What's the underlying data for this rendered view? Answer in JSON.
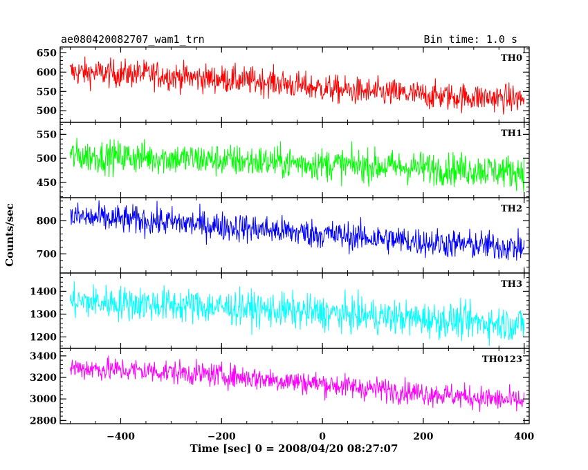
{
  "chart_data": {
    "type": "line",
    "title": "ae080420082707_wam1_trn",
    "subtitle": "Bin time: 1.0 s",
    "xlabel": "Time [sec] 0 = 2008/04/20 08:27:07",
    "ylabel": "Counts/sec",
    "xlim": [
      -520,
      410
    ],
    "x_start": -500,
    "x_end": 400,
    "x_ticks": [
      -400,
      -200,
      0,
      200,
      400
    ],
    "grid": false,
    "legend": "none",
    "series": [
      {
        "name": "TH0",
        "color": "#ff0000",
        "ylim": [
          470,
          665
        ],
        "y_ticks": [
          500,
          550,
          600,
          650
        ],
        "x": [
          -500,
          -450,
          -400,
          -350,
          -300,
          -250,
          -200,
          -150,
          -100,
          -50,
          0,
          50,
          100,
          150,
          200,
          250,
          300,
          350,
          400
        ],
        "values": [
          600,
          598,
          596,
          595,
          590,
          585,
          582,
          578,
          575,
          565,
          558,
          552,
          548,
          545,
          540,
          537,
          535,
          533,
          530
        ],
        "noise": 18
      },
      {
        "name": "TH1",
        "color": "#00ff00",
        "ylim": [
          418,
          575
        ],
        "y_ticks": [
          450,
          500,
          550
        ],
        "x": [
          -500,
          -450,
          -400,
          -350,
          -300,
          -250,
          -200,
          -150,
          -100,
          -50,
          0,
          50,
          100,
          150,
          200,
          250,
          300,
          350,
          400
        ],
        "values": [
          505,
          504,
          503,
          502,
          500,
          498,
          496,
          494,
          492,
          490,
          488,
          486,
          484,
          482,
          480,
          478,
          476,
          474,
          472
        ],
        "noise": 17
      },
      {
        "name": "TH2",
        "color": "#0000ff",
        "ylim": [
          642,
          870
        ],
        "y_ticks": [
          700,
          800
        ],
        "x": [
          -500,
          -450,
          -400,
          -350,
          -300,
          -250,
          -200,
          -150,
          -100,
          -50,
          0,
          50,
          100,
          150,
          200,
          250,
          300,
          350,
          400
        ],
        "values": [
          812,
          808,
          804,
          800,
          796,
          790,
          784,
          778,
          772,
          765,
          760,
          754,
          748,
          742,
          736,
          731,
          727,
          723,
          718
        ],
        "noise": 22
      },
      {
        "name": "TH3",
        "color": "#00ffff",
        "ylim": [
          1150,
          1480
        ],
        "y_ticks": [
          1200,
          1300,
          1400
        ],
        "x": [
          -500,
          -450,
          -400,
          -350,
          -300,
          -250,
          -200,
          -150,
          -100,
          -50,
          0,
          50,
          100,
          150,
          200,
          250,
          300,
          350,
          400
        ],
        "values": [
          1355,
          1352,
          1348,
          1345,
          1340,
          1335,
          1330,
          1325,
          1318,
          1312,
          1305,
          1298,
          1292,
          1285,
          1278,
          1272,
          1266,
          1260,
          1255
        ],
        "noise": 38
      },
      {
        "name": "TH0123",
        "color": "#ff00ff",
        "ylim": [
          2770,
          3470
        ],
        "y_ticks": [
          2800,
          3000,
          3200,
          3400
        ],
        "x": [
          -500,
          -450,
          -400,
          -350,
          -300,
          -250,
          -200,
          -150,
          -100,
          -50,
          0,
          50,
          100,
          150,
          200,
          250,
          300,
          350,
          400
        ],
        "values": [
          3290,
          3280,
          3270,
          3262,
          3250,
          3235,
          3220,
          3200,
          3180,
          3160,
          3140,
          3115,
          3095,
          3075,
          3055,
          3035,
          3015,
          2995,
          2975
        ],
        "noise": 55
      }
    ]
  }
}
